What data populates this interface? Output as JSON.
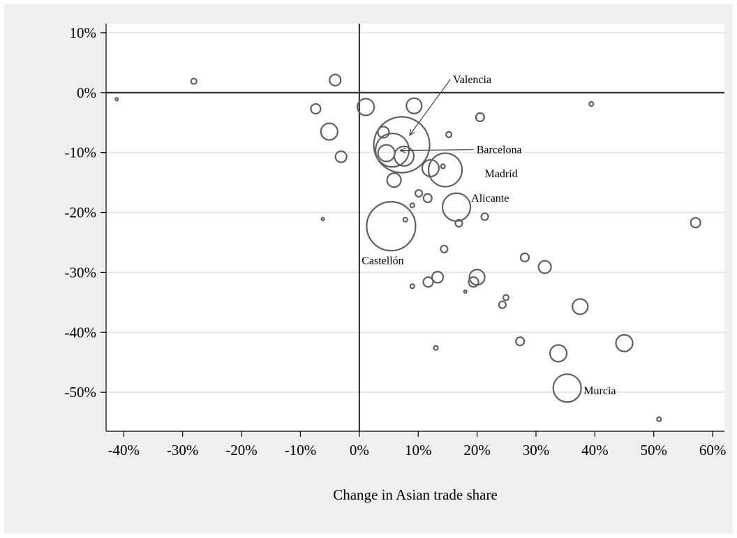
{
  "chart_data": {
    "type": "scatter",
    "title": "",
    "xlabel": "Change in Asian trade share",
    "ylabel": "",
    "xlim": [
      -43,
      62
    ],
    "ylim": [
      -56.5,
      11.5
    ],
    "x_ticks": [
      -40,
      -30,
      -20,
      -10,
      0,
      10,
      20,
      30,
      40,
      50,
      60
    ],
    "y_ticks": [
      10,
      0,
      -10,
      -20,
      -30,
      -40,
      -50
    ],
    "x_tick_labels": [
      "-40%",
      "-30%",
      "-20%",
      "-10%",
      "0%",
      "10%",
      "20%",
      "30%",
      "40%",
      "50%",
      "60%"
    ],
    "y_tick_labels": [
      "10%",
      "0%",
      "-10%",
      "-20%",
      "-30%",
      "-40%",
      "-50%"
    ],
    "grid": "horizontal",
    "reference_lines": {
      "x": 0,
      "y": 0
    },
    "marker_color": "#606060",
    "points": [
      {
        "x": -41.2,
        "y": -1.1,
        "r": 2
      },
      {
        "x": -28.1,
        "y": 1.9,
        "r": 4
      },
      {
        "x": -4.1,
        "y": 2.1,
        "r": 8
      },
      {
        "x": -7.4,
        "y": -2.7,
        "r": 7
      },
      {
        "x": -5.1,
        "y": -6.5,
        "r": 12
      },
      {
        "x": -3.1,
        "y": -10.7,
        "r": 8
      },
      {
        "x": -6.2,
        "y": -21.1,
        "r": 2
      },
      {
        "x": 1.1,
        "y": -2.4,
        "r": 12
      },
      {
        "x": 4.1,
        "y": -6.6,
        "r": 8
      },
      {
        "x": 4.6,
        "y": -10.1,
        "r": 12
      },
      {
        "x": 5.6,
        "y": -9.6,
        "r": 24,
        "label": "Barcelona",
        "label_x": 19.9,
        "label_y": -10.1,
        "arrow": true
      },
      {
        "x": 7.2,
        "y": -8.7,
        "r": 40,
        "label": "Valencia",
        "label_x": 15.9,
        "label_y": 1.6,
        "arrow": true
      },
      {
        "x": 7.6,
        "y": -10.6,
        "r": 14
      },
      {
        "x": 5.9,
        "y": -14.6,
        "r": 10
      },
      {
        "x": 9.3,
        "y": -2.2,
        "r": 11
      },
      {
        "x": 9.0,
        "y": -18.8,
        "r": 3
      },
      {
        "x": 10.1,
        "y": -16.8,
        "r": 5
      },
      {
        "x": 11.6,
        "y": -17.6,
        "r": 6
      },
      {
        "x": 12.1,
        "y": -12.6,
        "r": 12
      },
      {
        "x": 14.2,
        "y": -12.3,
        "r": 3
      },
      {
        "x": 14.6,
        "y": -12.9,
        "r": 24,
        "label": "Madrid",
        "label_x": 21.3,
        "label_y": -14.1
      },
      {
        "x": 15.2,
        "y": -7.0,
        "r": 4
      },
      {
        "x": 16.5,
        "y": -19.1,
        "r": 20,
        "label": "Alicante",
        "label_x": 19.0,
        "label_y": -18.2
      },
      {
        "x": 16.9,
        "y": -21.8,
        "r": 5
      },
      {
        "x": 20.5,
        "y": -4.1,
        "r": 6
      },
      {
        "x": 21.3,
        "y": -20.7,
        "r": 5
      },
      {
        "x": 5.4,
        "y": -22.3,
        "r": 35,
        "label": "Castellón",
        "label_x": 0.4,
        "label_y": -28.6
      },
      {
        "x": 7.8,
        "y": -21.2,
        "r": 3
      },
      {
        "x": 14.4,
        "y": -26.1,
        "r": 5
      },
      {
        "x": 9.0,
        "y": -32.3,
        "r": 3
      },
      {
        "x": 11.7,
        "y": -31.6,
        "r": 7
      },
      {
        "x": 13.3,
        "y": -30.8,
        "r": 8
      },
      {
        "x": 13.0,
        "y": -42.6,
        "r": 3
      },
      {
        "x": 18.0,
        "y": -33.2,
        "r": 2
      },
      {
        "x": 20.0,
        "y": -30.8,
        "r": 11
      },
      {
        "x": 19.4,
        "y": -31.6,
        "r": 7
      },
      {
        "x": 24.3,
        "y": -35.4,
        "r": 5
      },
      {
        "x": 24.9,
        "y": -34.2,
        "r": 4
      },
      {
        "x": 27.3,
        "y": -41.5,
        "r": 6
      },
      {
        "x": 28.1,
        "y": -27.5,
        "r": 6
      },
      {
        "x": 31.5,
        "y": -29.1,
        "r": 9
      },
      {
        "x": 33.8,
        "y": -43.5,
        "r": 12
      },
      {
        "x": 35.3,
        "y": -49.3,
        "r": 20,
        "label": "Murcia",
        "label_x": 38.1,
        "label_y": -50.3
      },
      {
        "x": 37.5,
        "y": -35.7,
        "r": 11
      },
      {
        "x": 39.4,
        "y": -1.9,
        "r": 3
      },
      {
        "x": 45.0,
        "y": -41.8,
        "r": 12
      },
      {
        "x": 50.9,
        "y": -54.5,
        "r": 3
      },
      {
        "x": 57.1,
        "y": -21.7,
        "r": 7
      }
    ]
  }
}
